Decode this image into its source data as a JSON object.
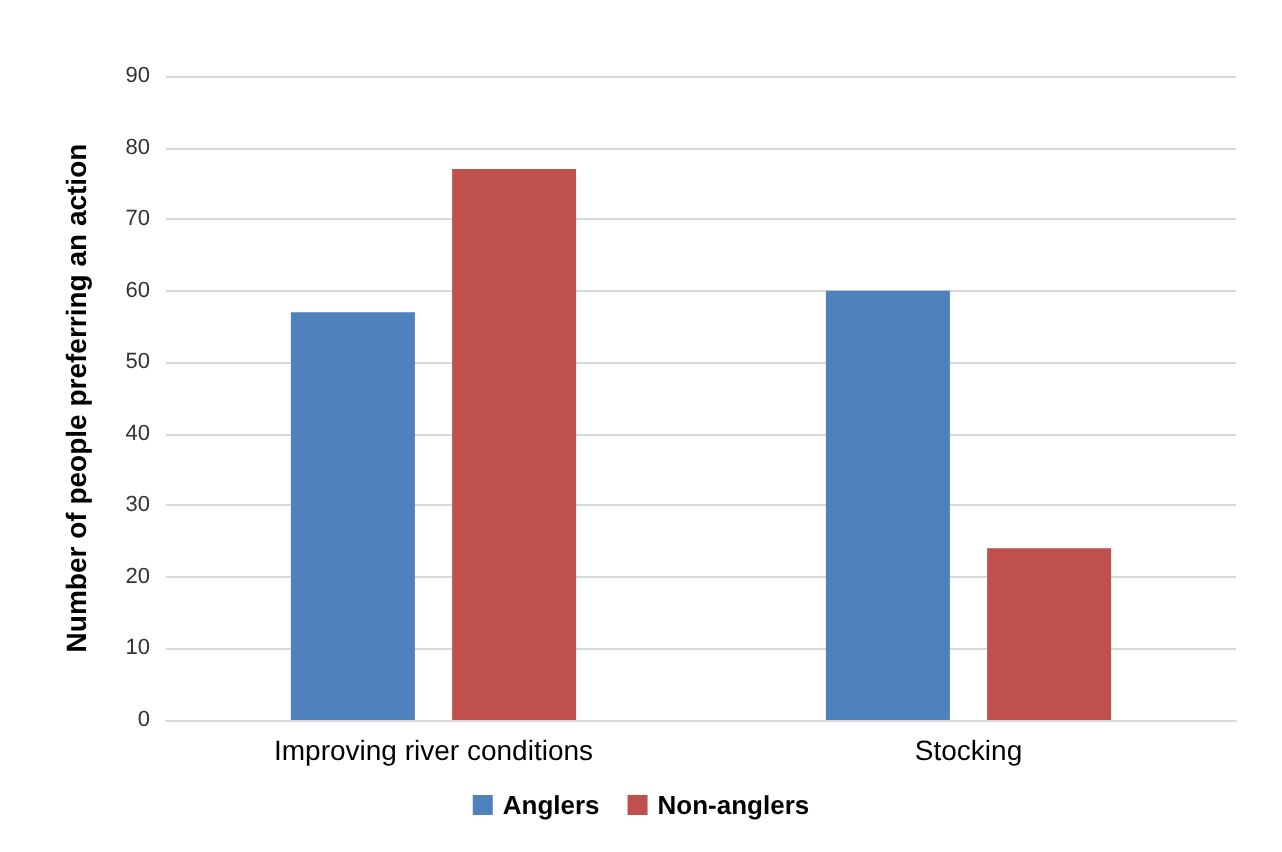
{
  "chart_data": {
    "type": "bar",
    "ylabel": "Number of people preferring an action",
    "categories": [
      "Improving river conditions",
      "Stocking"
    ],
    "series": [
      {
        "name": "Anglers",
        "color": "#4f81bd",
        "values": [
          57,
          60
        ]
      },
      {
        "name": "Non-anglers",
        "color": "#c0504d",
        "values": [
          77,
          24
        ]
      }
    ],
    "ylim": [
      0,
      90
    ],
    "yticks": [
      0,
      10,
      20,
      30,
      40,
      50,
      60,
      70,
      80,
      90
    ],
    "grid": "y",
    "legend": "bottom"
  }
}
